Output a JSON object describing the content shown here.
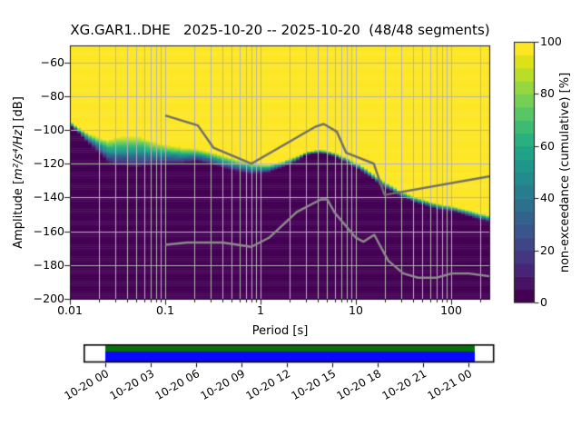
{
  "figure": {
    "background": "#ffffff"
  },
  "chart_data": {
    "type": "heatmap",
    "subtype": "ppsd-cumulative-spectral-density",
    "title": "XG.GAR1..DHE   2025-10-20 -- 2025-10-20  (48/48 segments)",
    "xlabel": "Period [s]",
    "ylabel": "Amplitude [m²/s⁴/Hz] [dB]",
    "ylabel_parts": [
      "Amplitude [",
      "m²/s⁴/Hz",
      "] [dB]"
    ],
    "xscale": "log",
    "xlim": [
      0.01,
      250
    ],
    "ylim": [
      -200,
      -50
    ],
    "x_ticks": [
      0.01,
      0.1,
      1,
      10,
      100
    ],
    "x_tick_labels": [
      "0.01",
      "0.1",
      "1",
      "10",
      "100"
    ],
    "y_ticks": [
      -60,
      -80,
      -100,
      -120,
      -140,
      -160,
      -180,
      -200
    ],
    "y_tick_labels": [
      "−60",
      "−80",
      "−100",
      "−120",
      "−140",
      "−160",
      "−180",
      "−200"
    ],
    "grid": true,
    "grid_color": "#b5b5b5",
    "colorbar": {
      "label": "non-exceedance (cumulative) [%]",
      "ticks": [
        0,
        20,
        40,
        60,
        80,
        100
      ],
      "tick_labels": [
        "0",
        "20",
        "40",
        "60",
        "80",
        "100"
      ],
      "range": [
        0,
        100
      ],
      "n_steps": 20,
      "colormap": "viridis",
      "colormap_stops": [
        [
          0.0,
          "#440154"
        ],
        [
          0.05,
          "#471365"
        ],
        [
          0.1,
          "#482475"
        ],
        [
          0.15,
          "#463480"
        ],
        [
          0.2,
          "#414487"
        ],
        [
          0.25,
          "#3b528b"
        ],
        [
          0.3,
          "#355f8d"
        ],
        [
          0.35,
          "#2f6c8e"
        ],
        [
          0.4,
          "#2a788e"
        ],
        [
          0.45,
          "#25848e"
        ],
        [
          0.5,
          "#21918c"
        ],
        [
          0.55,
          "#1e9c89"
        ],
        [
          0.6,
          "#22a884"
        ],
        [
          0.65,
          "#2fb47c"
        ],
        [
          0.7,
          "#44bf70"
        ],
        [
          0.75,
          "#5ec962"
        ],
        [
          0.8,
          "#7ad151"
        ],
        [
          0.85,
          "#9bd93c"
        ],
        [
          0.9,
          "#bddf26"
        ],
        [
          0.95,
          "#dfe318"
        ],
        [
          1.0,
          "#fde725"
        ]
      ]
    },
    "cumulative_band": {
      "description": "[period_s, dB_at_100pct_nonexceedance, dB_at_0pct_nonexceedance]",
      "points": [
        [
          0.01,
          -95.0,
          -97.5
        ],
        [
          0.0115,
          -97.5,
          -100.5
        ],
        [
          0.013,
          -99.5,
          -103.5
        ],
        [
          0.015,
          -101.5,
          -107.5
        ],
        [
          0.018,
          -103.3,
          -111.5
        ],
        [
          0.021,
          -104.5,
          -115.5
        ],
        [
          0.025,
          -105.5,
          -120.0
        ],
        [
          0.03,
          -104.0,
          -121.5
        ],
        [
          0.04,
          -102.5,
          -122.5
        ],
        [
          0.055,
          -103.0,
          -122.5
        ],
        [
          0.075,
          -106.5,
          -121.5
        ],
        [
          0.1,
          -108.5,
          -120.5
        ],
        [
          0.15,
          -110.0,
          -120.3
        ],
        [
          0.22,
          -111.0,
          -118.8
        ],
        [
          0.3,
          -113.0,
          -120.5
        ],
        [
          0.5,
          -116.5,
          -124.5
        ],
        [
          0.8,
          -119.5,
          -126.3
        ],
        [
          1.2,
          -120.5,
          -125.5
        ],
        [
          1.7,
          -118.5,
          -122.5
        ],
        [
          2.4,
          -115.5,
          -118.5
        ],
        [
          3.0,
          -113.0,
          -115.0
        ],
        [
          4.0,
          -111.8,
          -113.8
        ],
        [
          5.0,
          -112.3,
          -114.5
        ],
        [
          6.0,
          -113.5,
          -116.0
        ],
        [
          8.0,
          -116.5,
          -119.5
        ],
        [
          11.0,
          -120.5,
          -124.0
        ],
        [
          14.0,
          -124.5,
          -128.0
        ],
        [
          18.0,
          -129.0,
          -133.0
        ],
        [
          22.0,
          -132.0,
          -135.5
        ],
        [
          28.0,
          -135.5,
          -139.0
        ],
        [
          44.0,
          -140.0,
          -143.5
        ],
        [
          70.0,
          -143.5,
          -147.0
        ],
        [
          107.0,
          -145.5,
          -148.5
        ],
        [
          165.0,
          -148.0,
          -152.0
        ],
        [
          245.0,
          -150.5,
          -154.5
        ]
      ]
    },
    "noise_models": {
      "high": {
        "name": "high-noise-model",
        "color": "#6e6e6e",
        "points": [
          [
            0.1,
            -91.5
          ],
          [
            0.22,
            -97.4
          ],
          [
            0.32,
            -110.5
          ],
          [
            0.8,
            -120.0
          ],
          [
            3.8,
            -98.0
          ],
          [
            4.6,
            -96.5
          ],
          [
            6.3,
            -101.0
          ],
          [
            7.9,
            -113.5
          ],
          [
            15.4,
            -120.0
          ],
          [
            20.0,
            -138.5
          ],
          [
            354.8,
            -126.0
          ]
        ]
      },
      "low": {
        "name": "low-noise-model",
        "color": "#8c8c8c",
        "points": [
          [
            0.1,
            -168.0
          ],
          [
            0.17,
            -166.7
          ],
          [
            0.4,
            -166.7
          ],
          [
            0.8,
            -169.2
          ],
          [
            1.24,
            -163.7
          ],
          [
            2.4,
            -148.6
          ],
          [
            4.3,
            -141.1
          ],
          [
            5.0,
            -141.1
          ],
          [
            6.0,
            -149.0
          ],
          [
            10.0,
            -163.8
          ],
          [
            12.0,
            -166.2
          ],
          [
            15.6,
            -162.1
          ],
          [
            21.9,
            -177.5
          ],
          [
            31.6,
            -185.0
          ],
          [
            45.0,
            -187.5
          ],
          [
            70.0,
            -187.5
          ],
          [
            101.0,
            -185.0
          ],
          [
            154.0,
            -185.0
          ],
          [
            328.0,
            -187.5
          ]
        ]
      }
    }
  },
  "timeline": {
    "tick_labels": [
      "10-20 00",
      "10-20 03",
      "10-20 06",
      "10-20 09",
      "10-20 12",
      "10-20 15",
      "10-20 18",
      "10-20 21",
      "10-21 00"
    ],
    "coverage_bar": {
      "top_color": "#067306",
      "bottom_color": "#0808fb"
    }
  }
}
